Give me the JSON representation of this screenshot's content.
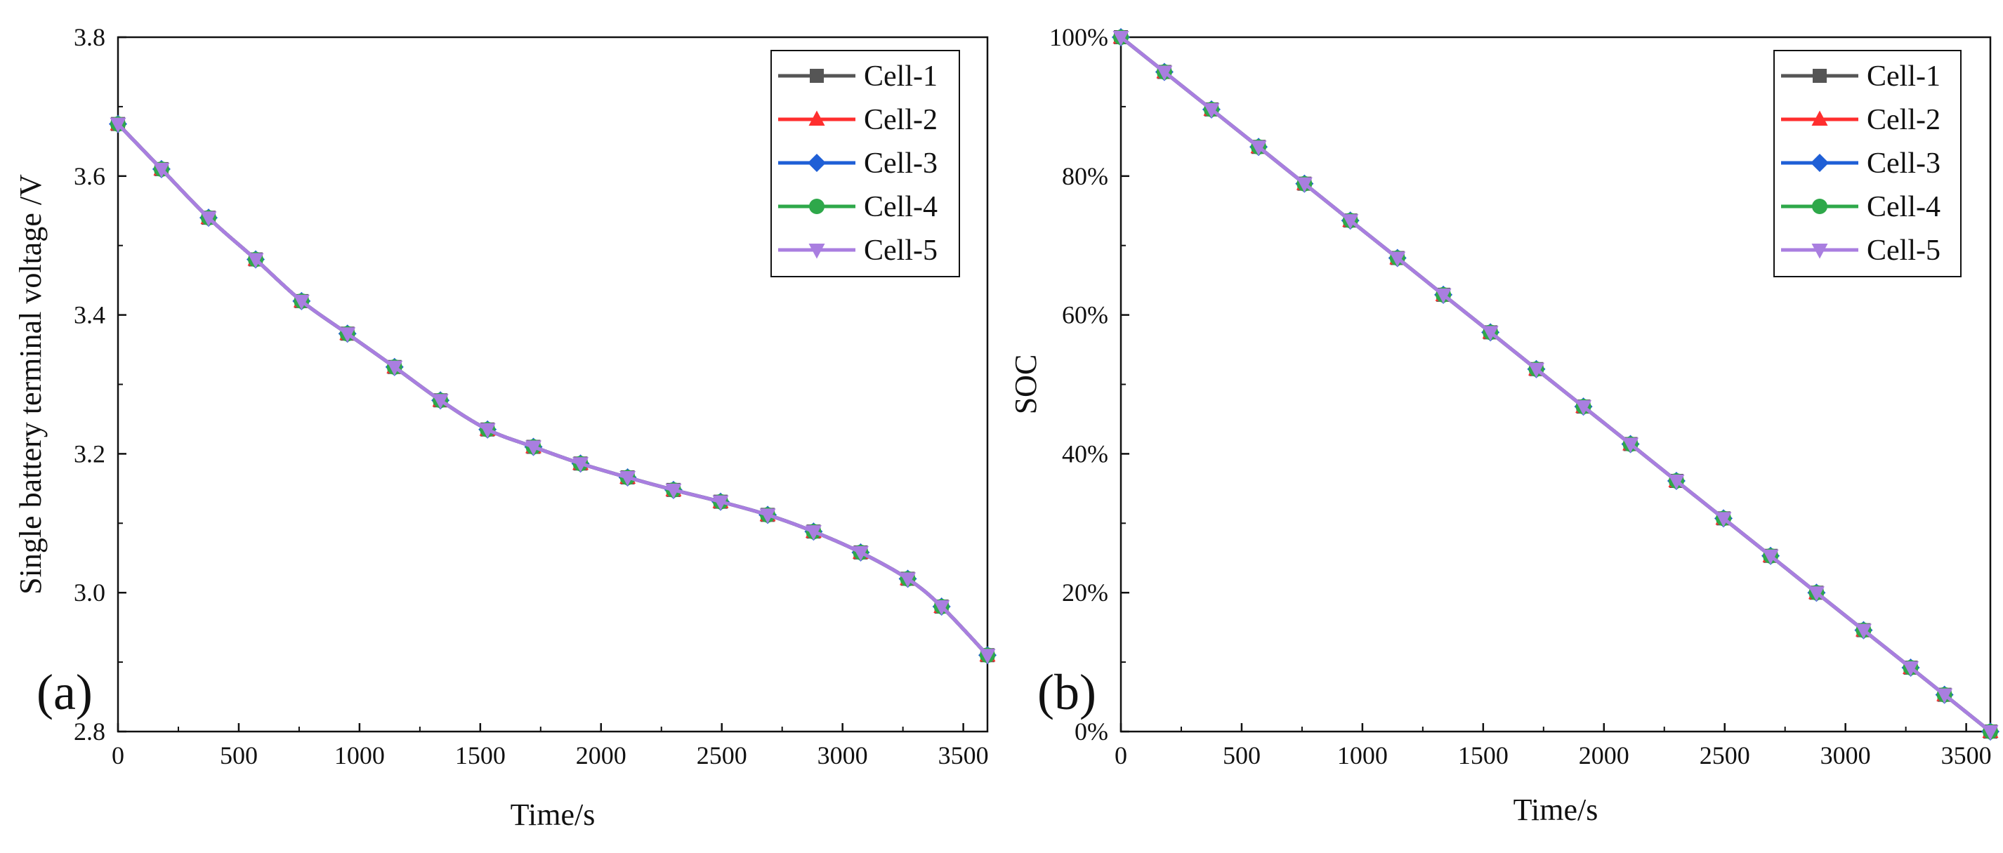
{
  "figure": {
    "panels": [
      "(a)",
      "(b)"
    ]
  },
  "chart_data": [
    {
      "type": "line",
      "panel_label": "(a)",
      "title": "",
      "xlabel": "Time/s",
      "ylabel": "Single battery terminal voltage /V",
      "xlim": [
        0,
        3600
      ],
      "ylim": [
        2.8,
        3.8
      ],
      "x_ticks": [
        "0",
        "500",
        "1000",
        "1500",
        "2000",
        "2500",
        "3000",
        "3500"
      ],
      "y_ticks": [
        "2.8",
        "3.0",
        "3.2",
        "3.4",
        "3.6",
        "3.8"
      ],
      "legend_position": "top-right",
      "x": [
        0,
        180,
        375,
        570,
        760,
        950,
        1145,
        1335,
        1530,
        1720,
        1915,
        2110,
        2300,
        2495,
        2690,
        2880,
        3075,
        3270,
        3410,
        3600
      ],
      "series": [
        {
          "name": "Cell-1",
          "color": "#555555",
          "marker": "square",
          "values": [
            3.675,
            3.61,
            3.54,
            3.48,
            3.42,
            3.373,
            3.325,
            3.277,
            3.235,
            3.21,
            3.186,
            3.166,
            3.148,
            3.131,
            3.112,
            3.088,
            3.058,
            3.02,
            2.98,
            2.91
          ]
        },
        {
          "name": "Cell-2",
          "color": "#ff2e2e",
          "marker": "triangle-up",
          "values": [
            3.675,
            3.61,
            3.54,
            3.48,
            3.42,
            3.373,
            3.325,
            3.277,
            3.235,
            3.21,
            3.186,
            3.166,
            3.148,
            3.131,
            3.112,
            3.088,
            3.058,
            3.02,
            2.98,
            2.91
          ]
        },
        {
          "name": "Cell-3",
          "color": "#1f5fd6",
          "marker": "diamond",
          "values": [
            3.675,
            3.61,
            3.54,
            3.48,
            3.42,
            3.373,
            3.325,
            3.277,
            3.235,
            3.21,
            3.186,
            3.166,
            3.148,
            3.131,
            3.112,
            3.088,
            3.058,
            3.02,
            2.98,
            2.91
          ]
        },
        {
          "name": "Cell-4",
          "color": "#2ea84a",
          "marker": "circle",
          "values": [
            3.675,
            3.61,
            3.54,
            3.48,
            3.42,
            3.373,
            3.325,
            3.277,
            3.235,
            3.21,
            3.186,
            3.166,
            3.148,
            3.131,
            3.112,
            3.088,
            3.058,
            3.02,
            2.98,
            2.91
          ]
        },
        {
          "name": "Cell-5",
          "color": "#a97ee0",
          "marker": "triangle-down",
          "values": [
            3.675,
            3.61,
            3.54,
            3.48,
            3.42,
            3.373,
            3.325,
            3.277,
            3.235,
            3.21,
            3.186,
            3.166,
            3.148,
            3.131,
            3.112,
            3.088,
            3.058,
            3.02,
            2.98,
            2.91
          ]
        }
      ]
    },
    {
      "type": "line",
      "panel_label": "(b)",
      "title": "",
      "xlabel": "Time/s",
      "ylabel": "SOC",
      "xlim": [
        0,
        3600
      ],
      "ylim": [
        0,
        100
      ],
      "x_ticks": [
        "0",
        "500",
        "1000",
        "1500",
        "2000",
        "2500",
        "3000",
        "3500"
      ],
      "y_ticks": [
        "0%",
        "20%",
        "40%",
        "60%",
        "80%",
        "100%"
      ],
      "legend_position": "top-right",
      "x": [
        0,
        180,
        375,
        570,
        760,
        950,
        1145,
        1335,
        1530,
        1720,
        1915,
        2110,
        2300,
        2495,
        2690,
        2880,
        3075,
        3270,
        3410,
        3600
      ],
      "series": [
        {
          "name": "Cell-1",
          "color": "#555555",
          "marker": "square",
          "values": [
            100,
            95.0,
            89.6,
            84.2,
            78.9,
            73.6,
            68.2,
            62.9,
            57.5,
            52.2,
            46.8,
            41.4,
            36.1,
            30.7,
            25.3,
            20.0,
            14.6,
            9.2,
            5.3,
            0
          ]
        },
        {
          "name": "Cell-2",
          "color": "#ff2e2e",
          "marker": "triangle-up",
          "values": [
            100,
            95.0,
            89.6,
            84.2,
            78.9,
            73.6,
            68.2,
            62.9,
            57.5,
            52.2,
            46.8,
            41.4,
            36.1,
            30.7,
            25.3,
            20.0,
            14.6,
            9.2,
            5.3,
            0
          ]
        },
        {
          "name": "Cell-3",
          "color": "#1f5fd6",
          "marker": "diamond",
          "values": [
            100,
            95.0,
            89.6,
            84.2,
            78.9,
            73.6,
            68.2,
            62.9,
            57.5,
            52.2,
            46.8,
            41.4,
            36.1,
            30.7,
            25.3,
            20.0,
            14.6,
            9.2,
            5.3,
            0
          ]
        },
        {
          "name": "Cell-4",
          "color": "#2ea84a",
          "marker": "circle",
          "values": [
            100,
            95.0,
            89.6,
            84.2,
            78.9,
            73.6,
            68.2,
            62.9,
            57.5,
            52.2,
            46.8,
            41.4,
            36.1,
            30.7,
            25.3,
            20.0,
            14.6,
            9.2,
            5.3,
            0
          ]
        },
        {
          "name": "Cell-5",
          "color": "#a97ee0",
          "marker": "triangle-down",
          "values": [
            100,
            95.0,
            89.6,
            84.2,
            78.9,
            73.6,
            68.2,
            62.9,
            57.5,
            52.2,
            46.8,
            41.4,
            36.1,
            30.7,
            25.3,
            20.0,
            14.6,
            9.2,
            5.3,
            0
          ]
        }
      ]
    }
  ]
}
